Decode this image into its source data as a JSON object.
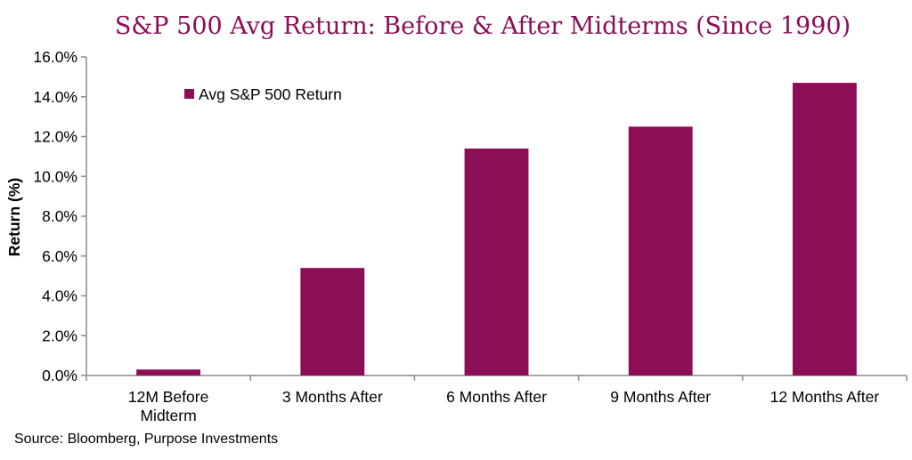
{
  "colors": {
    "accent": "#8B0E57",
    "axis": "#8c8c8c",
    "text": "#000000"
  },
  "chart_data": {
    "type": "bar",
    "title": "S&P 500 Avg Return: Before & After Midterms (Since 1990)",
    "xlabel": "",
    "ylabel": "Return (%)",
    "ylim": [
      0,
      16
    ],
    "ytick_step": 2,
    "yticks": [
      "0.0%",
      "2.0%",
      "4.0%",
      "6.0%",
      "8.0%",
      "10.0%",
      "12.0%",
      "14.0%",
      "16.0%"
    ],
    "categories": [
      [
        "12M Before",
        "Midterm"
      ],
      [
        "3 Months After"
      ],
      [
        "6 Months After"
      ],
      [
        "9 Months After"
      ],
      [
        "12 Months After"
      ]
    ],
    "series": [
      {
        "name": "Avg S&P 500 Return",
        "values": [
          0.3,
          5.4,
          11.4,
          12.5,
          14.7
        ]
      }
    ],
    "legend_position": "top-left",
    "grid": false
  },
  "footer": {
    "source": "Source: Bloomberg, Purpose Investments"
  }
}
